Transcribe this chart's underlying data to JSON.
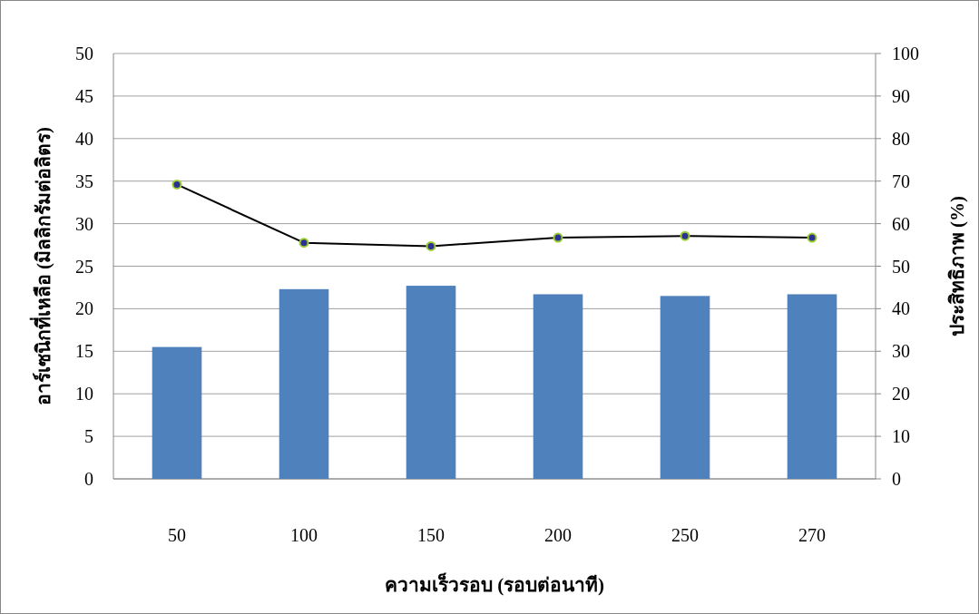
{
  "chart_data": {
    "type": "bar",
    "xlabel": "ความเร็วรอบ (รอบต่อนาที)",
    "ylabel": "อาร์เซนิกที่เหลือ (มิลลิกรัมต่อลิตร)",
    "y2label": "ประสิทธิภาพ (%)",
    "categories": [
      "50",
      "100",
      "150",
      "200",
      "250",
      "270"
    ],
    "series": [
      {
        "color": "#4f81bd",
        "values": [
          15.5,
          22.3,
          22.7,
          21.7,
          21.5,
          21.7
        ]
      },
      {
        "type": "line",
        "axis": "y2",
        "color": "#000000",
        "marker": "circle",
        "values": [
          69.2,
          55.5,
          54.7,
          56.7,
          57.1,
          56.7
        ]
      }
    ],
    "ylim": [
      0,
      50
    ],
    "yticks": [
      0,
      5,
      10,
      15,
      20,
      25,
      30,
      35,
      40,
      45,
      50
    ],
    "y2lim": [
      0,
      100
    ],
    "y2ticks": [
      0,
      10,
      20,
      30,
      40,
      50,
      60,
      70,
      80,
      90,
      100
    ],
    "grid": "y"
  }
}
